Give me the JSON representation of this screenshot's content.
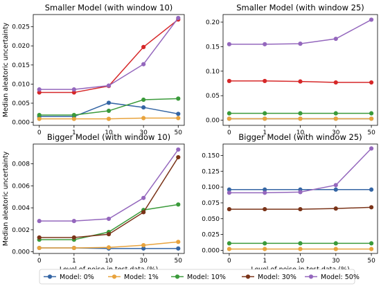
{
  "chart_data": [
    {
      "type": "line",
      "title": "Smaller Model (with window 10)",
      "xlabel": "",
      "ylabel": "Median aleatoric uncertainty",
      "x": [
        0,
        1,
        10,
        30,
        50
      ],
      "x_tick_labels": [
        "0",
        "1",
        "10",
        "30",
        "50"
      ],
      "ylim": [
        -0.0008,
        0.0282
      ],
      "y_ticks": [
        0.0,
        0.005,
        0.01,
        0.015,
        0.02,
        0.025
      ],
      "y_tick_labels": [
        "0.000",
        "0.005",
        "0.010",
        "0.015",
        "0.020",
        "0.025"
      ],
      "series": [
        {
          "name": "Model: 0%",
          "values": [
            0.0015,
            0.0015,
            0.0051,
            0.0039,
            0.0022
          ]
        },
        {
          "name": "Model: 1%",
          "values": [
            0.0009,
            0.0009,
            0.0009,
            0.0011,
            0.0011
          ]
        },
        {
          "name": "Model: 10%",
          "values": [
            0.0019,
            0.0019,
            0.003,
            0.0059,
            0.0062
          ]
        },
        {
          "name": "Model: 30%",
          "values": [
            0.0078,
            0.0078,
            0.0095,
            0.0197,
            0.0269
          ]
        },
        {
          "name": "Model: 50%",
          "values": [
            0.0086,
            0.0086,
            0.0096,
            0.0152,
            0.0273
          ]
        }
      ]
    },
    {
      "type": "line",
      "title": "Smaller Model (with window 25)",
      "xlabel": "",
      "ylabel": "",
      "x": [
        0,
        1,
        10,
        30,
        50
      ],
      "x_tick_labels": [
        "0",
        "1",
        "10",
        "30",
        "50"
      ],
      "ylim": [
        -0.0105,
        0.2155
      ],
      "y_ticks": [
        0.0,
        0.05,
        0.1,
        0.15,
        0.2
      ],
      "y_tick_labels": [
        "0.00",
        "0.05",
        "0.10",
        "0.15",
        "0.20"
      ],
      "series": [
        {
          "name": "Model: 0%",
          "values": [
            0.003,
            0.003,
            0.003,
            0.003,
            0.003
          ]
        },
        {
          "name": "Model: 1%",
          "values": [
            0.003,
            0.003,
            0.003,
            0.003,
            0.003
          ]
        },
        {
          "name": "Model: 10%",
          "values": [
            0.014,
            0.014,
            0.014,
            0.014,
            0.014
          ]
        },
        {
          "name": "Model: 30%",
          "values": [
            0.08,
            0.08,
            0.079,
            0.077,
            0.077
          ]
        },
        {
          "name": "Model: 50%",
          "values": [
            0.155,
            0.155,
            0.156,
            0.166,
            0.205
          ]
        }
      ]
    },
    {
      "type": "line",
      "title": "Bigger Model (with window 10)",
      "xlabel": "Level of noise in test data (%)",
      "ylabel": "Median aleatoric uncertainty",
      "x": [
        0,
        1,
        10,
        30,
        50
      ],
      "x_tick_labels": [
        "0",
        "1",
        "10",
        "30",
        "50"
      ],
      "ylim": [
        -0.00015,
        0.0098
      ],
      "y_ticks": [
        0.0,
        0.002,
        0.004,
        0.006,
        0.008
      ],
      "y_tick_labels": [
        "0.000",
        "0.002",
        "0.004",
        "0.006",
        "0.008"
      ],
      "series": [
        {
          "name": "Model: 0%",
          "values": [
            0.00035,
            0.00035,
            0.0003,
            0.0003,
            0.0003
          ]
        },
        {
          "name": "Model: 1%",
          "values": [
            0.00035,
            0.00035,
            0.0004,
            0.0006,
            0.0009
          ]
        },
        {
          "name": "Model: 10%",
          "values": [
            0.0011,
            0.0011,
            0.0018,
            0.0038,
            0.0043
          ]
        },
        {
          "name": "Model: 30%",
          "values": [
            0.0013,
            0.0013,
            0.0016,
            0.0036,
            0.0086
          ]
        },
        {
          "name": "Model: 50%",
          "values": [
            0.0028,
            0.0028,
            0.003,
            0.0049,
            0.0093
          ]
        }
      ]
    },
    {
      "type": "line",
      "title": "Bigger Model (with window 25)",
      "xlabel": "Level of noise in test data (%)",
      "ylabel": "",
      "x": [
        0,
        1,
        10,
        30,
        50
      ],
      "x_tick_labels": [
        "0",
        "1",
        "10",
        "30",
        "50"
      ],
      "ylim": [
        -0.005,
        0.168
      ],
      "y_ticks": [
        0.0,
        0.025,
        0.05,
        0.075,
        0.1,
        0.125,
        0.15
      ],
      "y_tick_labels": [
        "0.000",
        "0.025",
        "0.050",
        "0.075",
        "0.100",
        "0.125",
        "0.150"
      ],
      "series": [
        {
          "name": "Model: 0%",
          "values": [
            0.096,
            0.096,
            0.096,
            0.096,
            0.096
          ]
        },
        {
          "name": "Model: 1%",
          "values": [
            0.002,
            0.002,
            0.002,
            0.002,
            0.002
          ]
        },
        {
          "name": "Model: 10%",
          "values": [
            0.011,
            0.011,
            0.011,
            0.011,
            0.011
          ]
        },
        {
          "name": "Model: 30%",
          "values": [
            0.065,
            0.065,
            0.065,
            0.066,
            0.068
          ]
        },
        {
          "name": "Model: 50%",
          "values": [
            0.091,
            0.091,
            0.092,
            0.103,
            0.161
          ]
        }
      ]
    }
  ],
  "legend": {
    "placement": "bottom",
    "entries": [
      {
        "label": "Model: 0%",
        "color": "#3465a4"
      },
      {
        "label": "Model: 1%",
        "color": "#e8a33d"
      },
      {
        "label": "Model: 10%",
        "color": "#3a9a3a"
      },
      {
        "label": "Model: 30%",
        "color": "#7a3318"
      },
      {
        "label": "Model: 50%",
        "color": "#9467bd"
      }
    ]
  },
  "series_colors": [
    "#3465a4",
    "#e8a33d",
    "#3a9a3a",
    "#d62728",
    "#9467bd"
  ],
  "bigger_model_30_color": "#7a3318"
}
